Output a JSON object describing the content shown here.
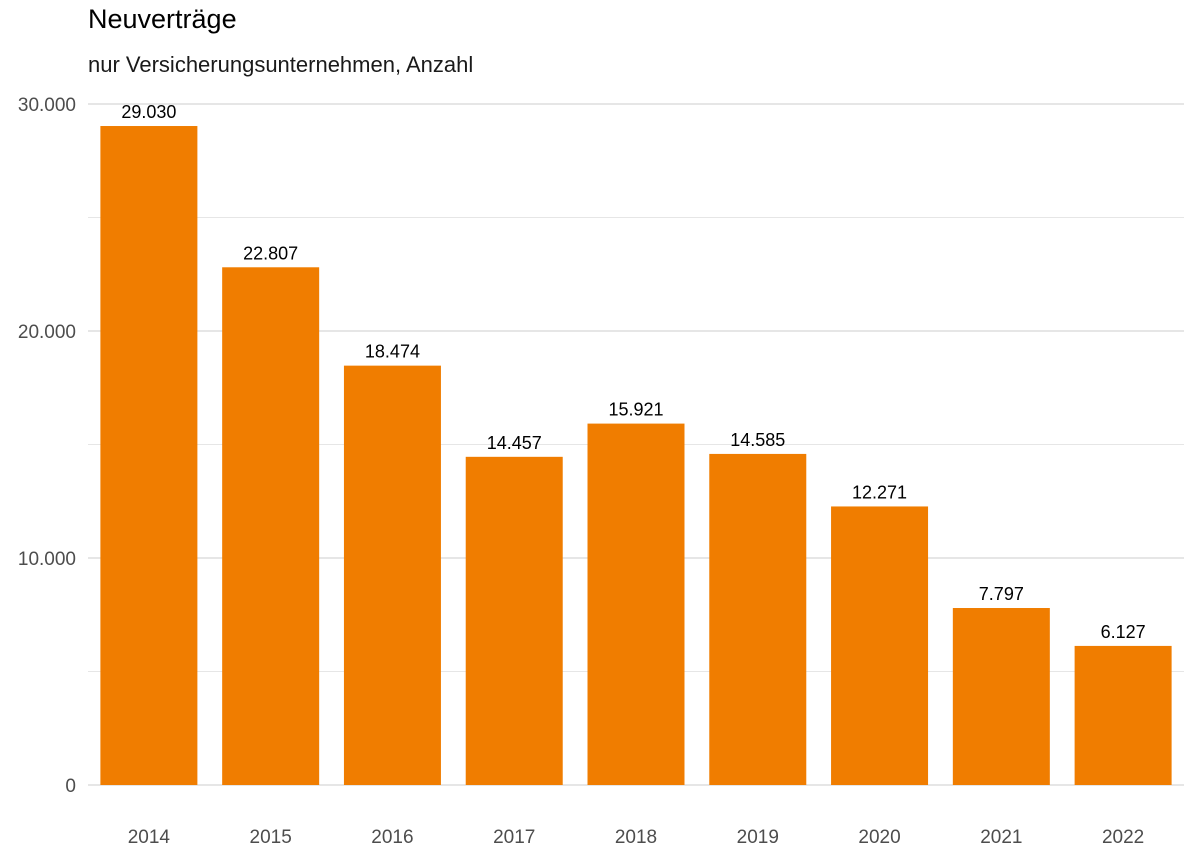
{
  "title": "Neuverträge",
  "subtitle": "nur Versicherungsunternehmen, Anzahl",
  "colors": {
    "bar": "#f07d00",
    "grid": "#e6e6e6",
    "text": "#4d4d4d"
  },
  "chart_data": {
    "type": "bar",
    "title": "Neuverträge",
    "subtitle": "nur Versicherungsunternehmen, Anzahl",
    "xlabel": "",
    "ylabel": "",
    "categories": [
      "2014",
      "2015",
      "2016",
      "2017",
      "2018",
      "2019",
      "2020",
      "2021",
      "2022"
    ],
    "values": [
      29030,
      22807,
      18474,
      14457,
      15921,
      14585,
      12271,
      7797,
      6127
    ],
    "value_labels": [
      "29.030",
      "22.807",
      "18.474",
      "14.457",
      "15.921",
      "14.585",
      "12.271",
      "7.797",
      "6.127"
    ],
    "ylim": [
      0,
      30000
    ],
    "yticks": [
      0,
      10000,
      20000,
      30000
    ],
    "ytick_labels": [
      "0",
      "10.000",
      "20.000",
      "30.000"
    ],
    "grid": true,
    "legend": "none"
  }
}
